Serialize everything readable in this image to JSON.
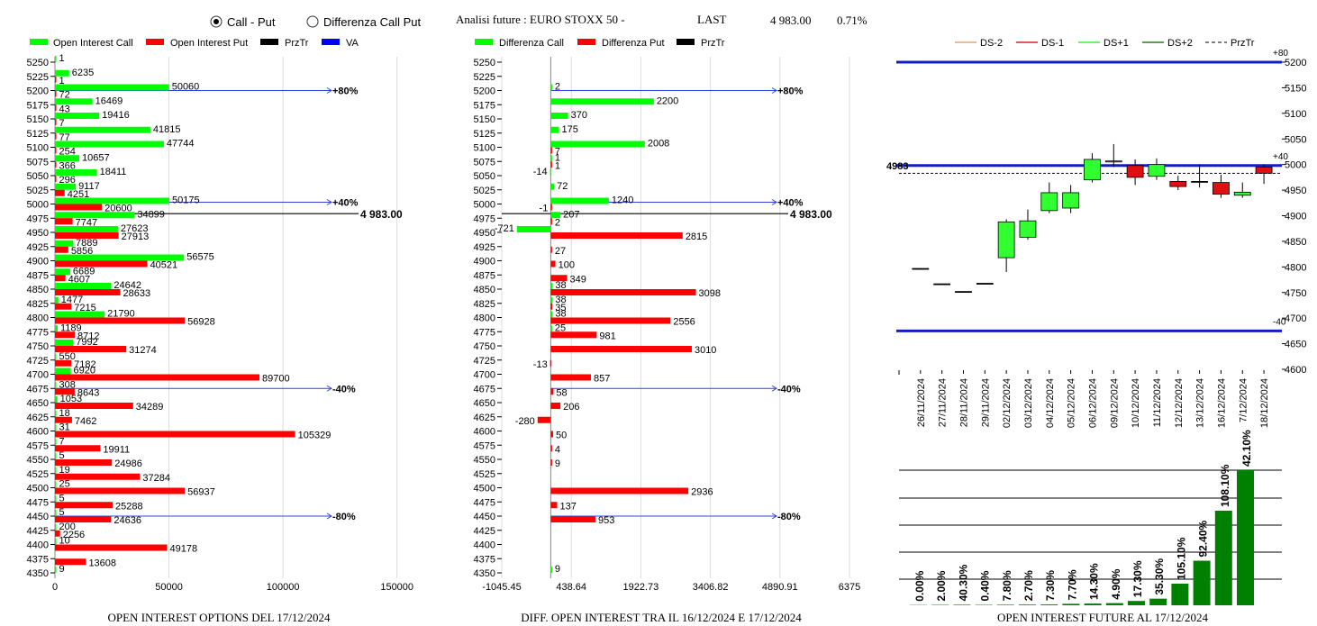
{
  "header": {
    "radio_options": [
      {
        "label": "Call - Put",
        "selected": true
      },
      {
        "label": "Differenza Call Put",
        "selected": false
      }
    ],
    "title": "Analisi future : EURO STOXX 50 -",
    "last_label": "LAST",
    "last_value": "4 983.00",
    "change": "0.71%"
  },
  "colors": {
    "call": "#00ff00",
    "put": "#ff0000",
    "przTr": "#000000",
    "va": "#0000ff",
    "ds_m2": "#f0a070",
    "ds_m1": "#e02020",
    "ds_p1": "#40f040",
    "ds_p2": "#208020",
    "oi_bar": "#008000"
  },
  "chart_data": [
    {
      "type": "bar",
      "orientation": "horizontal",
      "title": "OPEN INTEREST OPTIONS DEL 17/12/2024",
      "legend": [
        "Open Interest Call",
        "Open Interest Put",
        "PrzTr",
        "VA"
      ],
      "strikes": [
        "5250",
        "5225",
        "5200",
        "5175",
        "5150",
        "5125",
        "5100",
        "5075",
        "5050",
        "5025",
        "5000",
        "4975",
        "4950",
        "4925",
        "4900",
        "4875",
        "4850",
        "4825",
        "4800",
        "4775",
        "4750",
        "4725",
        "4700",
        "4675",
        "4650",
        "4625",
        "4600",
        "4575",
        "4550",
        "4525",
        "4500",
        "4475",
        "4450",
        "4425",
        "4400",
        "4375",
        "4350"
      ],
      "series": [
        {
          "name": "Open Interest Call",
          "values": [
            1,
            6235,
            50060,
            16469,
            19416,
            41815,
            47744,
            10657,
            18411,
            9117,
            50175,
            34899,
            27623,
            7889,
            56575,
            6689,
            24642,
            1477,
            21790,
            1189,
            7992,
            550,
            6920,
            308,
            1053,
            18,
            31,
            7,
            5,
            19,
            25,
            5,
            5,
            200,
            10,
            null,
            9
          ]
        },
        {
          "name": "Open Interest Put",
          "values": [
            null,
            1,
            72,
            43,
            7,
            77,
            254,
            366,
            296,
            4251,
            20600,
            7747,
            27913,
            5856,
            40521,
            4607,
            28633,
            7215,
            56928,
            8712,
            31274,
            7182,
            89700,
            8643,
            34289,
            7462,
            105329,
            19911,
            24986,
            37284,
            56937,
            25288,
            24636,
            2256,
            49178,
            13608,
            null
          ]
        }
      ],
      "x_ticks": [
        "0",
        "50000",
        "100000",
        "150000"
      ],
      "xlim": [
        0,
        160000
      ],
      "przTr": {
        "value": 4983.0,
        "label": "4 983.00"
      },
      "levels": [
        {
          "strike": 5200,
          "label": "+80%"
        },
        {
          "strike": 5000,
          "label": "+40%"
        },
        {
          "strike": 4675,
          "label": "-40%"
        },
        {
          "strike": 4450,
          "label": "-80%"
        }
      ]
    },
    {
      "type": "bar",
      "orientation": "horizontal",
      "title": "DIFF. OPEN INTEREST TRA IL 16/12/2024 E 17/12/2024",
      "legend": [
        "Differenza Call",
        "Differenza Put",
        "PrzTr"
      ],
      "strikes": [
        "5250",
        "5225",
        "5200",
        "5175",
        "5150",
        "5125",
        "5100",
        "5075",
        "5050",
        "5025",
        "5000",
        "4975",
        "4950",
        "4925",
        "4900",
        "4875",
        "4850",
        "4825",
        "4800",
        "4775",
        "4750",
        "4725",
        "4700",
        "4675",
        "4650",
        "4625",
        "4600",
        "4575",
        "4550",
        "4525",
        "4500",
        "4475",
        "4450",
        "4425",
        "4400",
        "4375",
        "4350"
      ],
      "series": [
        {
          "name": "Differenza Call",
          "values": [
            null,
            null,
            2,
            2200,
            370,
            175,
            2008,
            1,
            -14,
            72,
            1240,
            207,
            -721,
            null,
            null,
            null,
            38,
            38,
            38,
            25,
            null,
            null,
            null,
            null,
            null,
            null,
            null,
            null,
            null,
            null,
            null,
            null,
            null,
            null,
            null,
            null,
            9
          ]
        },
        {
          "name": "Differenza Put",
          "values": [
            null,
            null,
            null,
            null,
            null,
            null,
            7,
            1,
            null,
            null,
            -1,
            2,
            2815,
            27,
            100,
            349,
            3098,
            35,
            2556,
            981,
            3010,
            -13,
            857,
            58,
            206,
            -280,
            50,
            4,
            9,
            null,
            2936,
            137,
            953,
            null,
            null,
            null,
            null
          ]
        }
      ],
      "x_ticks": [
        "-1045.45",
        "438.64",
        "1922.73",
        "3406.82",
        "4890.91",
        "6375"
      ],
      "xlim": [
        -1045.45,
        6375
      ],
      "przTr": {
        "value": 4983.0,
        "label": "4 983.00"
      },
      "levels": [
        {
          "strike": 5200,
          "label": "+80%"
        },
        {
          "strike": 5000,
          "label": "+40%"
        },
        {
          "strike": 4675,
          "label": "-40%"
        },
        {
          "strike": 4450,
          "label": "-80%"
        }
      ]
    },
    {
      "type": "candlestick",
      "legend": [
        "DS-2",
        "DS-1",
        "DS+1",
        "DS+2",
        "PrzTr"
      ],
      "dates": [
        "26/11/2024",
        "27/11/2024",
        "28/11/2024",
        "29/11/2024",
        "02/12/2024",
        "03/12/2024",
        "04/12/2024",
        "05/12/2024",
        "06/12/2024",
        "09/12/2024",
        "10/12/2024",
        "11/12/2024",
        "12/12/2024",
        "13/12/2024",
        "16/12/2024",
        "7/12/2024",
        "18/12/2024"
      ],
      "candles": [
        {
          "open": 4797,
          "high": 4797,
          "low": 4797,
          "close": 4797
        },
        {
          "open": 4767,
          "high": 4767,
          "low": 4767,
          "close": 4767
        },
        {
          "open": 4752,
          "high": 4752,
          "low": 4752,
          "close": 4752
        },
        {
          "open": 4768,
          "high": 4768,
          "low": 4768,
          "close": 4768
        },
        {
          "open": 4818,
          "high": 4893,
          "low": 4790,
          "close": 4888
        },
        {
          "open": 4858,
          "high": 4912,
          "low": 4853,
          "close": 4890
        },
        {
          "open": 4910,
          "high": 4965,
          "low": 4905,
          "close": 4945
        },
        {
          "open": 4915,
          "high": 4960,
          "low": 4905,
          "close": 4945
        },
        {
          "open": 4970,
          "high": 5022,
          "low": 4965,
          "close": 5010
        },
        {
          "open": 5005,
          "high": 5040,
          "low": 4995,
          "close": 5007
        },
        {
          "open": 4998,
          "high": 5010,
          "low": 4960,
          "close": 4975
        },
        {
          "open": 4977,
          "high": 5012,
          "low": 4970,
          "close": 5000
        },
        {
          "open": 4967,
          "high": 4978,
          "low": 4950,
          "close": 4957
        },
        {
          "open": 4967,
          "high": 5000,
          "low": 4955,
          "close": 4967
        },
        {
          "open": 4965,
          "high": 4980,
          "low": 4935,
          "close": 4942
        },
        {
          "open": 4940,
          "high": 4965,
          "low": 4935,
          "close": 4946
        },
        {
          "open": 4995,
          "high": 5000,
          "low": 4962,
          "close": 4983
        }
      ],
      "y_ticks": [
        "5200",
        "5150",
        "5100",
        "5050",
        "5000",
        "4950",
        "4900",
        "4850",
        "4800",
        "4750",
        "4700",
        "4650",
        "4600"
      ],
      "ylim": [
        4600,
        5210
      ],
      "bands": [
        {
          "value": 5200,
          "label": "+80"
        },
        {
          "value": 4998,
          "label": "+40"
        },
        {
          "value": 4675,
          "label": "-40"
        }
      ],
      "przTr": {
        "value": 4983,
        "label": "4983"
      }
    },
    {
      "type": "bar",
      "title": "OPEN INTEREST FUTURE AL 17/12/2024",
      "labels": [
        "0.00%",
        "2.00%",
        "40.30%",
        "0.40%",
        "7.80%",
        "2.70%",
        "7.30%",
        "7.70%",
        "14.30%",
        "4.90%",
        "17.30%",
        "35.30%",
        "105.10%",
        "92.40%",
        "108.10%",
        "42.10%"
      ],
      "values": [
        0.2,
        0.3,
        0.4,
        0.3,
        0.4,
        0.5,
        0.6,
        1.1,
        1.3,
        1.6,
        3.2,
        4.9,
        16,
        33,
        70,
        100
      ]
    }
  ]
}
